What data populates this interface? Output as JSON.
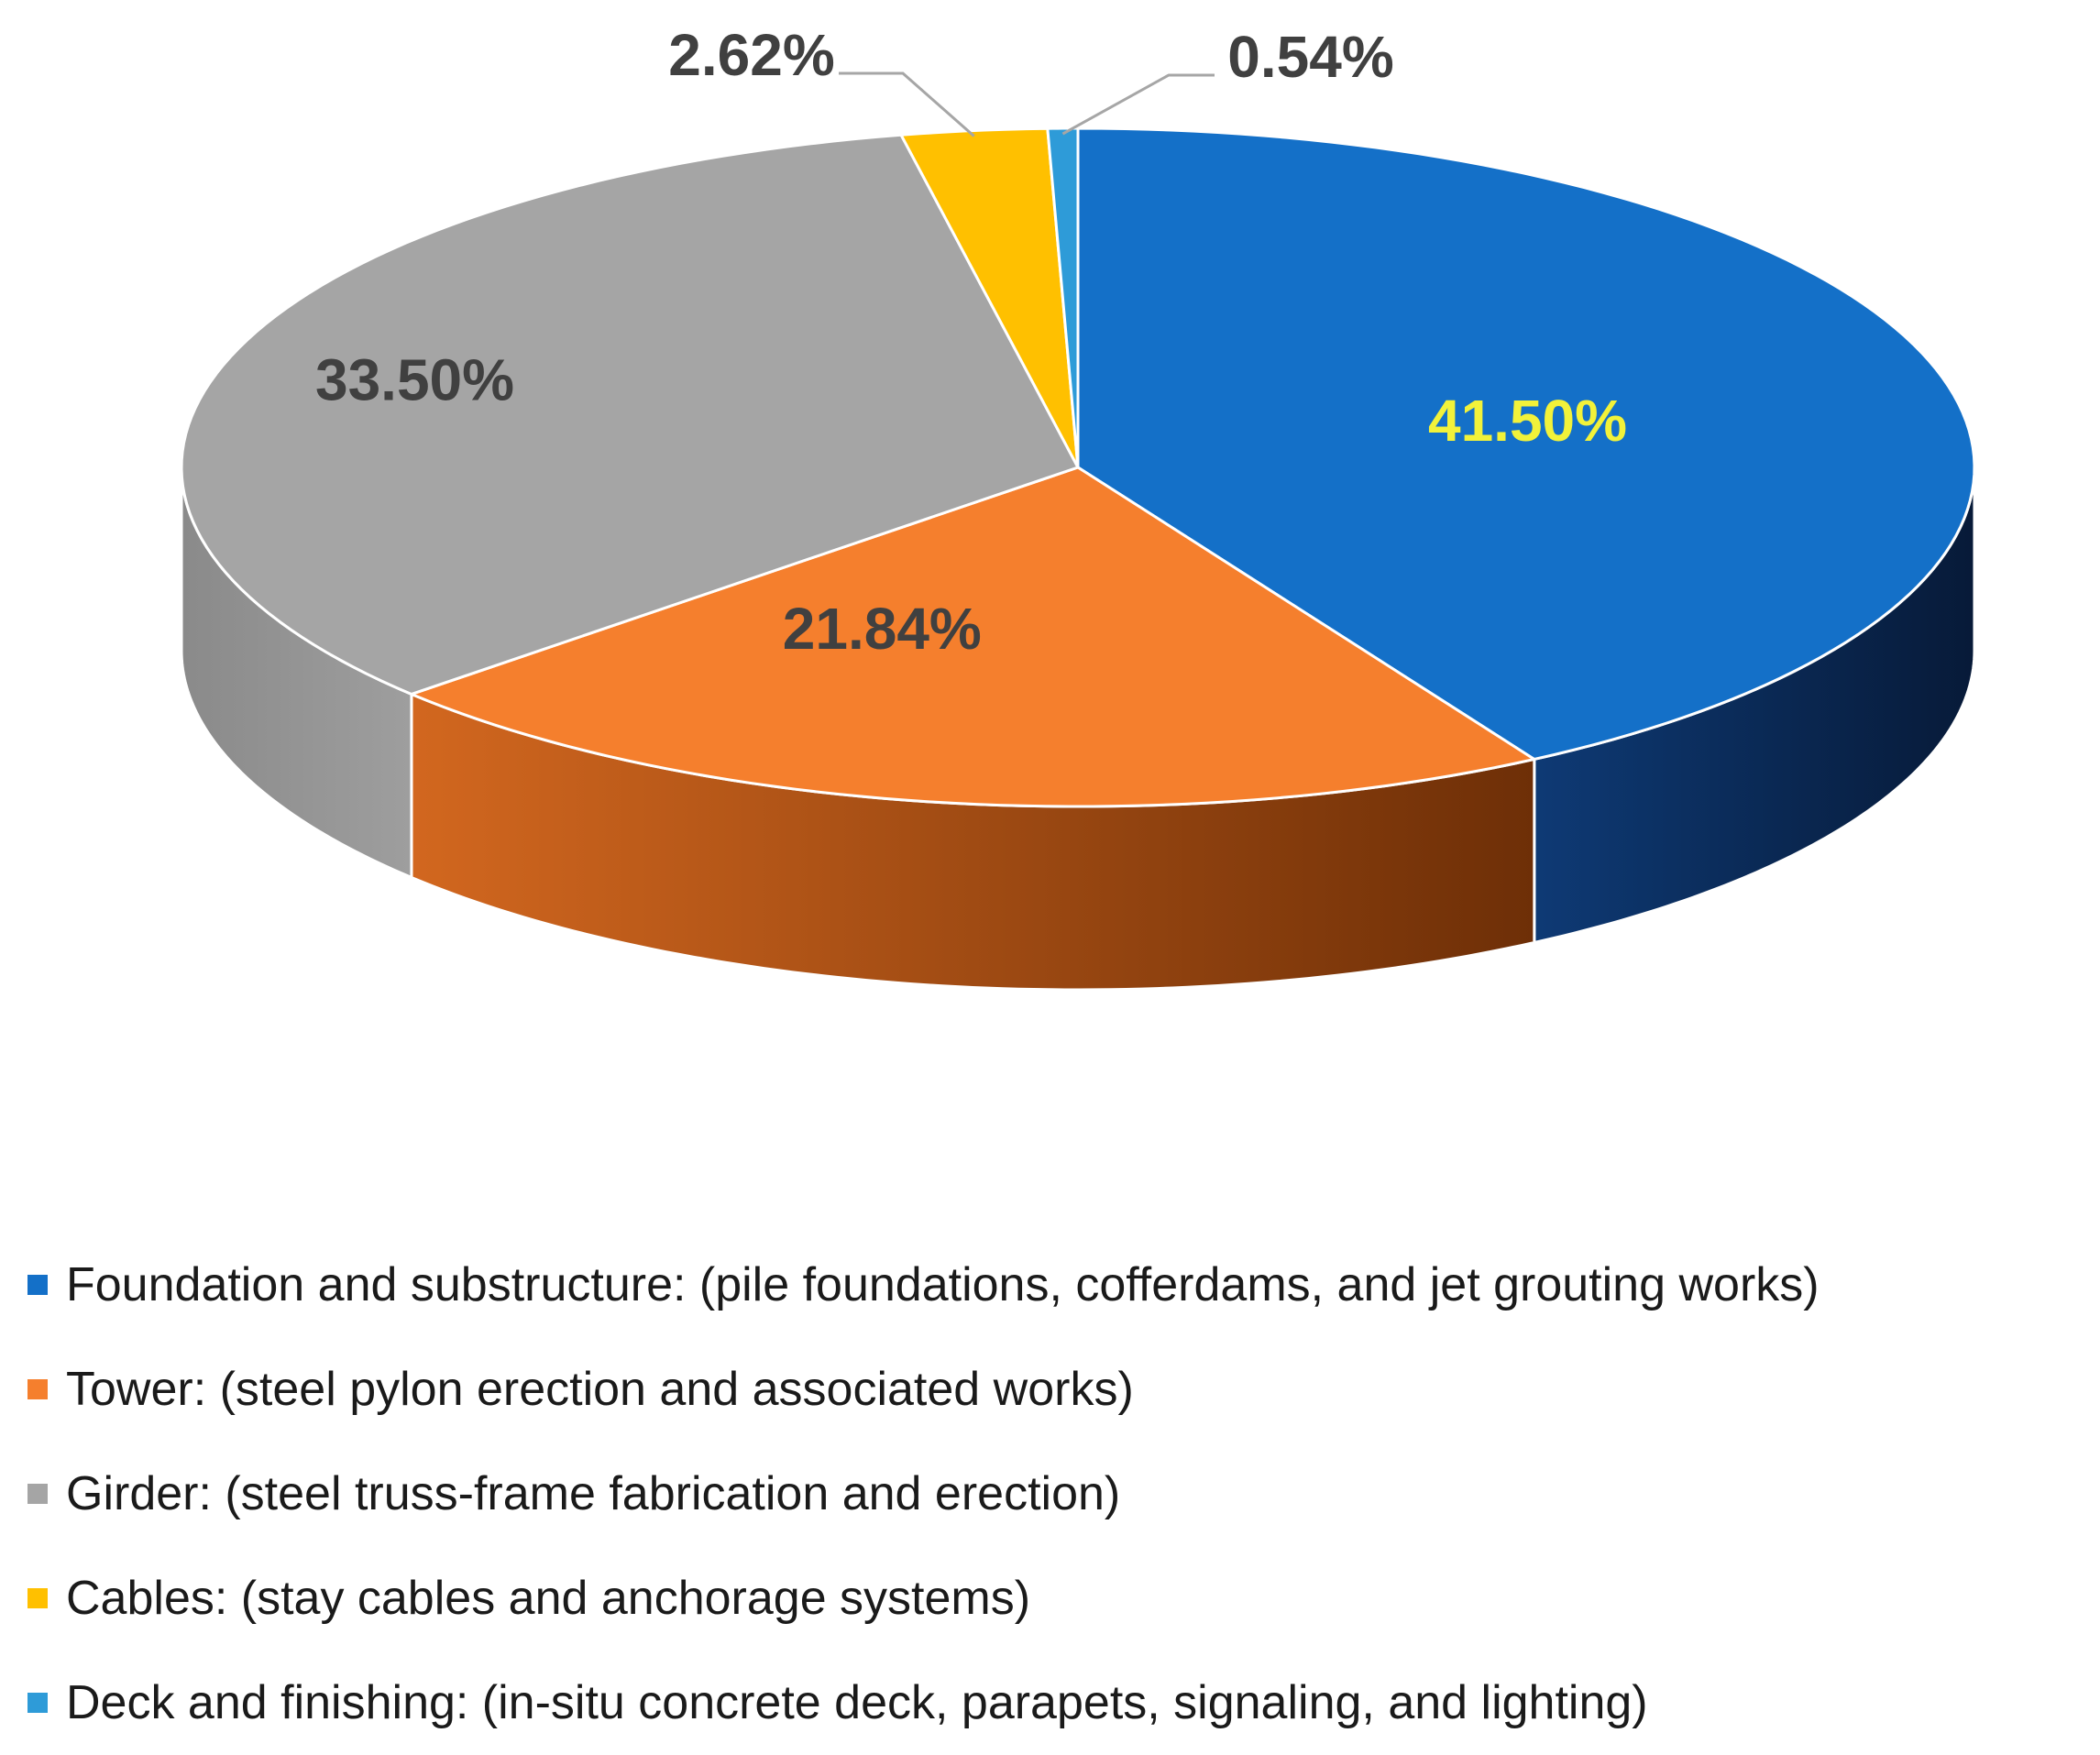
{
  "chart_data": {
    "type": "pie",
    "title": "",
    "series": [
      {
        "name": "Foundation and substructure",
        "value": 41.5,
        "label": "41.50%",
        "legend": "Foundation and substructure: (pile foundations, cofferdams, and jet grouting works)",
        "color": "#1470C8",
        "side_color": "#0B2750",
        "label_color": "#F2F23A"
      },
      {
        "name": "Tower",
        "value": 21.84,
        "label": "21.84%",
        "legend": "Tower: (steel pylon erection and associated works)",
        "color": "#F57F2D",
        "side_color": "#A8501A",
        "label_color": "#404040"
      },
      {
        "name": "Girder",
        "value": 33.5,
        "label": "33.50%",
        "legend": "Girder: (steel truss-frame fabrication and erection)",
        "color": "#A5A5A5",
        "side_color": "#7A7A7A",
        "label_color": "#404040"
      },
      {
        "name": "Cables",
        "value": 2.62,
        "label": "2.62%",
        "legend": "Cables: (stay cables and anchorage systems)",
        "color": "#FFC000",
        "side_color": "#B08400",
        "label_color": "#404040"
      },
      {
        "name": "Deck and finishing",
        "value": 0.54,
        "label": "0.54%",
        "legend": "Deck and finishing: (in-situ concrete deck, parapets, signaling, and lighting)",
        "color": "#2E9BD8",
        "side_color": "#1A5F88",
        "label_color": "#404040"
      }
    ],
    "legend_position": "bottom"
  }
}
